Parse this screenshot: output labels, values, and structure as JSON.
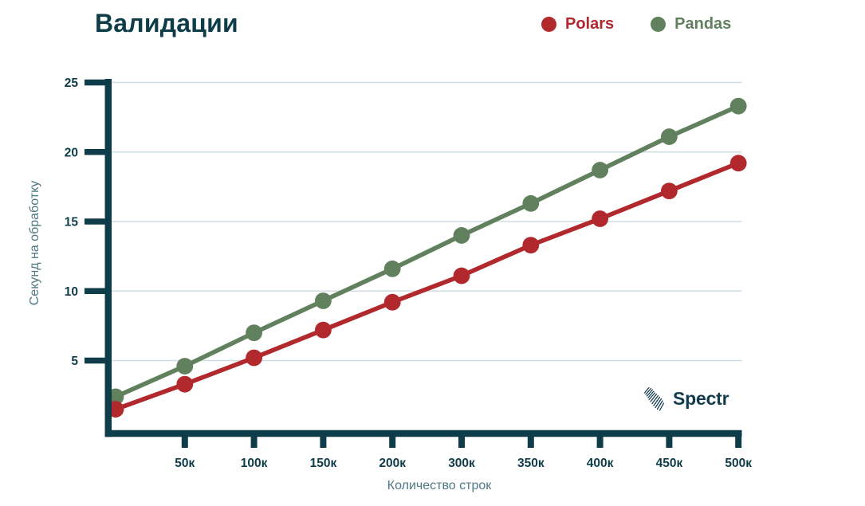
{
  "header": {
    "title": "Валидации"
  },
  "watermark": {
    "brand": "Spectr"
  },
  "colors": {
    "background": "#FFFFFF",
    "accent_dark": "#0E3C49",
    "muted_label": "#4E7886",
    "grid": "#CFDCE1",
    "brand": "#123B4D",
    "polars_red": "#B1282D",
    "pandas_green": "#61805E"
  },
  "chart_data": {
    "type": "line",
    "title": "Валидации",
    "xlabel": "Количество строк",
    "ylabel": "Секунд на обработку",
    "categories": [
      "",
      "50к",
      "100к",
      "150к",
      "200к",
      "300к",
      "350к",
      "400к",
      "450к",
      "500к"
    ],
    "series": [
      {
        "name": "Polars",
        "color": "#B1282D",
        "values": [
          1.5,
          3.3,
          5.2,
          7.2,
          9.2,
          11.1,
          13.3,
          15.2,
          17.2,
          19.2
        ]
      },
      {
        "name": "Pandas",
        "color": "#61805E",
        "values": [
          2.4,
          4.6,
          7.0,
          9.3,
          11.6,
          14.0,
          16.3,
          18.7,
          21.1,
          23.3
        ]
      }
    ],
    "yticks": [
      5,
      10,
      15,
      20,
      25
    ],
    "ylim": [
      0,
      25
    ],
    "grid": "horizontal",
    "marker": "circle",
    "legend_position": "top-right"
  }
}
